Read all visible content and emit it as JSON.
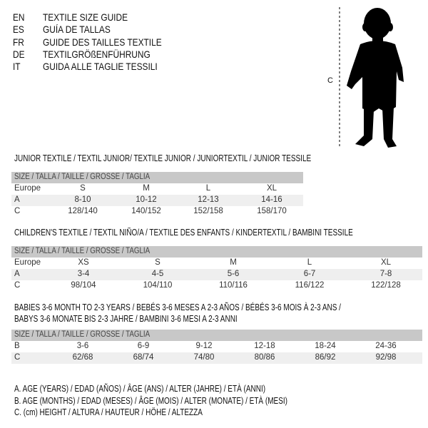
{
  "languages": [
    {
      "code": "EN",
      "title": "TEXTILE SIZE GUIDE"
    },
    {
      "code": "ES",
      "title": "GUÍA DE TALLAS"
    },
    {
      "code": "FR",
      "title": "GUIDE DES TAILLES TEXTILE"
    },
    {
      "code": "DE",
      "title": "TEXTILGRÖßENFÜHRUNG"
    },
    {
      "code": "IT",
      "title": "GUIDA ALLE TAGLIE TESSILI"
    }
  ],
  "figure": {
    "measure_label": "C",
    "icon": "baby-silhouette"
  },
  "tables": [
    {
      "title": "JUNIOR TEXTILE / TEXTIL JUNIOR/ TEXTILE JUNIOR / JUNIORTEXTIL / JUNIOR TESSILE",
      "header": "SIZE / TALLA / TAILLE / GRÖSSE / TAGLIA",
      "rows": [
        {
          "label": "Europe",
          "values": [
            "S",
            "M",
            "L",
            "XL"
          ]
        },
        {
          "label": "A",
          "values": [
            "8-10",
            "10-12",
            "12-13",
            "14-16"
          ]
        },
        {
          "label": "C",
          "values": [
            "128/140",
            "140/152",
            "152/158",
            "158/170"
          ]
        }
      ]
    },
    {
      "title": "CHILDREN'S TEXTILE / TEXTIL NIÑO/A / TEXTILE DES ENFANTS / KINDERTEXTIL / BAMBINI TESSILE",
      "header": "SIZE / TALLA / TAILLE / GRÖSSE / TAGLIA",
      "rows": [
        {
          "label": "Europe",
          "values": [
            "XS",
            "S",
            "M",
            "L",
            "XL"
          ]
        },
        {
          "label": "A",
          "values": [
            "3-4",
            "4-5",
            "5-6",
            "6-7",
            "7-8"
          ]
        },
        {
          "label": "C",
          "values": [
            "98/104",
            "104/110",
            "110/116",
            "116/122",
            "122/128"
          ]
        }
      ]
    },
    {
      "title": "BABIES 3-6 MONTH TO 2-3 YEARS / BEBÉS 3-6 MESES A 2-3 AÑOS / BÉBÉS 3-6 MOIS À 2-3 ANS /",
      "title2": "BABYS 3-6 MONATE BIS 2-3 JAHRE / BAMBINI 3-6 MESI A 2-3 ANNI",
      "header": "SIZE / TALLA / TAILLE / GRÖSSE / TAGLIA",
      "rows": [
        {
          "label": "B",
          "values": [
            "3-6",
            "6-9",
            "9-12",
            "12-18",
            "18-24",
            "24-36"
          ]
        },
        {
          "label": "C",
          "values": [
            "62/68",
            "68/74",
            "74/80",
            "80/86",
            "86/92",
            "92/98"
          ]
        }
      ]
    }
  ],
  "legend": [
    "A. AGE (YEARS) / EDAD (AÑOS) / ÂGE (ANS) / ALTER (JAHRE) / ETÀ (ANNI)",
    "B. AGE (MONTHS) / EDAD (MESES) / ÂGE (MOIS) / ALTER (MONATE) / ETÀ (MESI)",
    "C. (cm) HEIGHT / ALTURA / HAUTEUR / HÖHE / ALTEZZA"
  ]
}
